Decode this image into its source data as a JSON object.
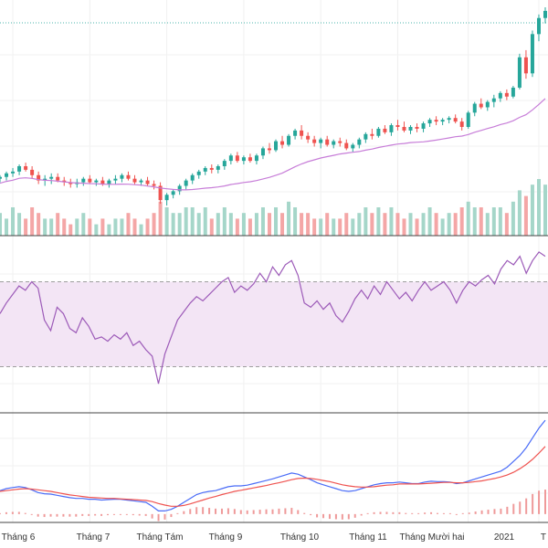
{
  "chart_data": [
    {
      "type": "candlestick",
      "panel": "price",
      "has_volume": true,
      "moving_average": true,
      "reference_line": true,
      "colors": {
        "up": "#26a69a",
        "down": "#ef5350",
        "ma": "#c77dd8",
        "ref": "#4db6ac",
        "vol_up": "#a5d6c9",
        "vol_down": "#f4a6a6"
      },
      "points": [
        [
          10.6,
          10.8,
          10.4,
          10.7,
          4
        ],
        [
          10.7,
          11.0,
          10.5,
          10.9,
          3
        ],
        [
          10.9,
          11.2,
          10.7,
          11.0,
          5
        ],
        [
          11.0,
          11.4,
          10.8,
          11.3,
          4
        ],
        [
          11.3,
          11.5,
          11.0,
          11.1,
          3
        ],
        [
          11.1,
          11.3,
          10.6,
          10.8,
          5
        ],
        [
          10.8,
          11.0,
          10.3,
          10.5,
          4
        ],
        [
          10.5,
          10.8,
          10.2,
          10.6,
          3
        ],
        [
          10.6,
          10.9,
          10.3,
          10.7,
          3
        ],
        [
          10.7,
          10.9,
          10.4,
          10.5,
          4
        ],
        [
          10.5,
          10.7,
          10.2,
          10.4,
          3
        ],
        [
          10.4,
          10.6,
          10.1,
          10.3,
          2
        ],
        [
          10.3,
          10.6,
          10.1,
          10.4,
          3
        ],
        [
          10.4,
          10.7,
          10.2,
          10.6,
          4
        ],
        [
          10.6,
          10.8,
          10.3,
          10.4,
          3
        ],
        [
          10.4,
          10.6,
          10.2,
          10.5,
          2
        ],
        [
          10.5,
          10.7,
          10.2,
          10.3,
          3
        ],
        [
          10.3,
          10.6,
          10.1,
          10.5,
          2
        ],
        [
          10.5,
          10.8,
          10.3,
          10.6,
          3
        ],
        [
          10.6,
          10.9,
          10.4,
          10.8,
          3
        ],
        [
          10.8,
          11.0,
          10.5,
          10.6,
          4
        ],
        [
          10.6,
          10.8,
          10.3,
          10.4,
          3
        ],
        [
          10.4,
          10.6,
          10.2,
          10.5,
          2
        ],
        [
          10.5,
          10.7,
          10.2,
          10.3,
          3
        ],
        [
          10.3,
          10.5,
          10.0,
          10.2,
          4
        ],
        [
          10.2,
          10.4,
          9.2,
          9.4,
          6
        ],
        [
          9.4,
          9.8,
          9.1,
          9.7,
          5
        ],
        [
          9.7,
          10.0,
          9.5,
          9.9,
          4
        ],
        [
          9.9,
          10.3,
          9.7,
          10.2,
          4
        ],
        [
          10.2,
          10.6,
          10.0,
          10.5,
          5
        ],
        [
          10.5,
          10.9,
          10.3,
          10.8,
          5
        ],
        [
          10.8,
          11.1,
          10.6,
          11.0,
          4
        ],
        [
          11.0,
          11.3,
          10.8,
          11.2,
          5
        ],
        [
          11.2,
          11.4,
          10.9,
          11.1,
          3
        ],
        [
          11.1,
          11.4,
          10.9,
          11.3,
          4
        ],
        [
          11.3,
          11.7,
          11.1,
          11.6,
          5
        ],
        [
          11.6,
          12.0,
          11.4,
          11.9,
          4
        ],
        [
          11.9,
          12.1,
          11.5,
          11.6,
          3
        ],
        [
          11.6,
          11.9,
          11.4,
          11.8,
          4
        ],
        [
          11.8,
          12.0,
          11.5,
          11.6,
          3
        ],
        [
          11.6,
          12.0,
          11.4,
          11.9,
          4
        ],
        [
          11.9,
          12.4,
          11.7,
          12.3,
          5
        ],
        [
          12.3,
          12.6,
          12.0,
          12.2,
          4
        ],
        [
          12.2,
          12.8,
          12.1,
          12.7,
          5
        ],
        [
          12.7,
          13.0,
          12.3,
          12.5,
          4
        ],
        [
          12.5,
          13.1,
          12.4,
          13.0,
          6
        ],
        [
          13.0,
          13.4,
          12.8,
          13.3,
          5
        ],
        [
          13.3,
          13.6,
          12.8,
          13.0,
          4
        ],
        [
          13.0,
          13.2,
          12.6,
          12.8,
          4
        ],
        [
          12.8,
          13.0,
          12.4,
          12.6,
          3
        ],
        [
          12.6,
          12.9,
          12.3,
          12.8,
          3
        ],
        [
          12.8,
          13.0,
          12.4,
          12.5,
          4
        ],
        [
          12.5,
          12.8,
          12.3,
          12.7,
          3
        ],
        [
          12.7,
          12.9,
          12.4,
          12.6,
          3
        ],
        [
          12.6,
          12.8,
          12.2,
          12.3,
          4
        ],
        [
          12.3,
          12.6,
          12.1,
          12.5,
          3
        ],
        [
          12.5,
          12.9,
          12.3,
          12.8,
          4
        ],
        [
          12.8,
          13.2,
          12.6,
          13.1,
          5
        ],
        [
          13.1,
          13.4,
          12.8,
          13.0,
          4
        ],
        [
          13.0,
          13.5,
          12.9,
          13.4,
          5
        ],
        [
          13.4,
          13.6,
          13.1,
          13.2,
          4
        ],
        [
          13.2,
          13.7,
          13.0,
          13.6,
          5
        ],
        [
          13.6,
          13.9,
          13.3,
          13.5,
          4
        ],
        [
          13.5,
          13.8,
          13.2,
          13.3,
          3
        ],
        [
          13.3,
          13.6,
          13.1,
          13.5,
          4
        ],
        [
          13.5,
          13.7,
          13.2,
          13.4,
          3
        ],
        [
          13.4,
          13.8,
          13.2,
          13.7,
          4
        ],
        [
          13.7,
          14.0,
          13.5,
          13.9,
          5
        ],
        [
          13.9,
          14.1,
          13.6,
          13.8,
          4
        ],
        [
          13.8,
          14.0,
          13.6,
          13.9,
          3
        ],
        [
          13.9,
          14.1,
          13.7,
          14.0,
          4
        ],
        [
          14.0,
          14.2,
          13.7,
          13.8,
          4
        ],
        [
          13.8,
          14.0,
          13.3,
          13.5,
          5
        ],
        [
          13.5,
          14.4,
          13.4,
          14.3,
          6
        ],
        [
          14.3,
          14.9,
          14.1,
          14.8,
          5
        ],
        [
          14.8,
          15.1,
          14.5,
          14.6,
          5
        ],
        [
          14.6,
          15.0,
          14.4,
          14.9,
          4
        ],
        [
          14.9,
          15.3,
          14.6,
          15.1,
          5
        ],
        [
          15.1,
          15.5,
          14.9,
          15.4,
          5
        ],
        [
          15.4,
          15.6,
          15.0,
          15.2,
          4
        ],
        [
          15.2,
          15.8,
          15.1,
          15.7,
          6
        ],
        [
          15.7,
          17.6,
          15.6,
          17.4,
          8
        ],
        [
          17.4,
          17.8,
          16.2,
          16.5,
          7
        ],
        [
          16.5,
          18.9,
          16.3,
          18.7,
          9
        ],
        [
          18.7,
          19.8,
          18.3,
          19.6,
          10
        ],
        [
          19.6,
          20.2,
          19.3,
          20.0,
          9
        ]
      ]
    },
    {
      "type": "line",
      "panel": "rsi",
      "band": [
        30,
        70
      ],
      "ylim": [
        10,
        90
      ],
      "colors": {
        "line": "#9c5ab8",
        "band": "#f3e5f5",
        "band_edge": "#9e9e9e"
      },
      "values": [
        55,
        60,
        64,
        68,
        66,
        70,
        67,
        52,
        47,
        58,
        55,
        48,
        46,
        53,
        49,
        43,
        44,
        42,
        45,
        43,
        46,
        40,
        42,
        38,
        35,
        22,
        36,
        44,
        52,
        56,
        60,
        63,
        61,
        64,
        67,
        70,
        72,
        65,
        68,
        66,
        69,
        74,
        70,
        77,
        73,
        78,
        80,
        73,
        60,
        58,
        61,
        57,
        60,
        54,
        51,
        56,
        62,
        66,
        62,
        68,
        64,
        70,
        66,
        62,
        65,
        61,
        66,
        70,
        66,
        68,
        70,
        66,
        60,
        66,
        70,
        68,
        71,
        73,
        69,
        76,
        80,
        78,
        82,
        74,
        80,
        84,
        82
      ]
    },
    {
      "type": "line",
      "panel": "macd",
      "series": [
        {
          "role": "macd",
          "color": "#4a6cf7",
          "values": [
            0.1,
            0.15,
            0.18,
            0.2,
            0.18,
            0.12,
            0.05,
            0.02,
            0.01,
            -0.02,
            -0.05,
            -0.08,
            -0.1,
            -0.1,
            -0.12,
            -0.12,
            -0.14,
            -0.13,
            -0.12,
            -0.12,
            -0.14,
            -0.16,
            -0.18,
            -0.2,
            -0.3,
            -0.42,
            -0.42,
            -0.38,
            -0.3,
            -0.2,
            -0.1,
            0.0,
            0.05,
            0.08,
            0.1,
            0.15,
            0.2,
            0.22,
            0.22,
            0.24,
            0.28,
            0.32,
            0.36,
            0.4,
            0.45,
            0.5,
            0.55,
            0.52,
            0.45,
            0.38,
            0.3,
            0.25,
            0.2,
            0.15,
            0.1,
            0.08,
            0.1,
            0.15,
            0.2,
            0.25,
            0.28,
            0.3,
            0.3,
            0.32,
            0.3,
            0.28,
            0.28,
            0.32,
            0.34,
            0.33,
            0.33,
            0.32,
            0.28,
            0.3,
            0.35,
            0.4,
            0.45,
            0.5,
            0.55,
            0.6,
            0.7,
            0.85,
            1.0,
            1.2,
            1.45,
            1.7,
            1.9
          ]
        },
        {
          "role": "signal",
          "color": "#ef5350",
          "values": [
            0.08,
            0.1,
            0.12,
            0.14,
            0.15,
            0.14,
            0.12,
            0.1,
            0.08,
            0.05,
            0.02,
            -0.01,
            -0.03,
            -0.05,
            -0.07,
            -0.08,
            -0.09,
            -0.1,
            -0.1,
            -0.11,
            -0.12,
            -0.13,
            -0.14,
            -0.15,
            -0.18,
            -0.23,
            -0.27,
            -0.3,
            -0.3,
            -0.28,
            -0.24,
            -0.19,
            -0.14,
            -0.09,
            -0.05,
            0.0,
            0.04,
            0.08,
            0.11,
            0.14,
            0.17,
            0.2,
            0.23,
            0.27,
            0.3,
            0.34,
            0.38,
            0.41,
            0.42,
            0.41,
            0.39,
            0.36,
            0.33,
            0.29,
            0.25,
            0.22,
            0.2,
            0.19,
            0.19,
            0.2,
            0.22,
            0.24,
            0.25,
            0.27,
            0.27,
            0.27,
            0.27,
            0.28,
            0.29,
            0.3,
            0.31,
            0.31,
            0.3,
            0.3,
            0.31,
            0.33,
            0.35,
            0.38,
            0.41,
            0.45,
            0.5,
            0.57,
            0.66,
            0.77,
            0.9,
            1.06,
            1.23
          ]
        }
      ],
      "histogram_colors": {
        "pos": "#ef9a9a",
        "neg": "#ef9a9a"
      }
    }
  ],
  "x_axis": {
    "tick_labels": [
      "Tháng 6",
      "Tháng 7",
      "Tháng Tám",
      "Tháng 9",
      "Tháng 10",
      "Tháng 11",
      "Tháng Mười hai",
      "2021",
      "T"
    ],
    "tick_indices": [
      2,
      14,
      26,
      38,
      50,
      62,
      73,
      84,
      93
    ]
  }
}
